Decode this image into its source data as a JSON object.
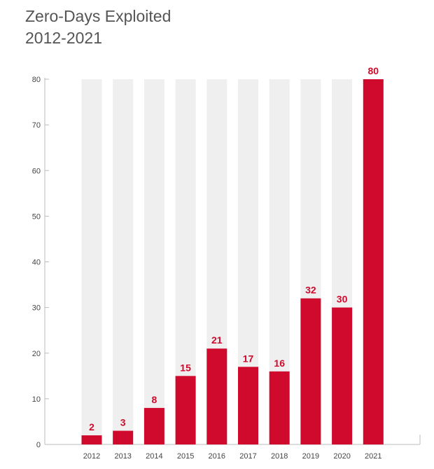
{
  "chart_data": {
    "type": "bar",
    "title": "Zero-Days Exploited",
    "subtitle": "2012-2021",
    "categories": [
      "2012",
      "2013",
      "2014",
      "2015",
      "2016",
      "2017",
      "2018",
      "2019",
      "2020",
      "2021"
    ],
    "values": [
      2,
      3,
      8,
      15,
      21,
      17,
      16,
      32,
      30,
      80
    ],
    "ylim": [
      0,
      80
    ],
    "yticks": [
      0,
      10,
      20,
      30,
      40,
      50,
      60,
      70,
      80
    ],
    "xlabel": "",
    "ylabel": "",
    "grid": false,
    "legend": "none",
    "data_labels": true,
    "colors": {
      "bar": "#cf0a2c",
      "track": "#efefef",
      "axis": "#bbbbbb",
      "label": "#cf0a2c"
    }
  }
}
